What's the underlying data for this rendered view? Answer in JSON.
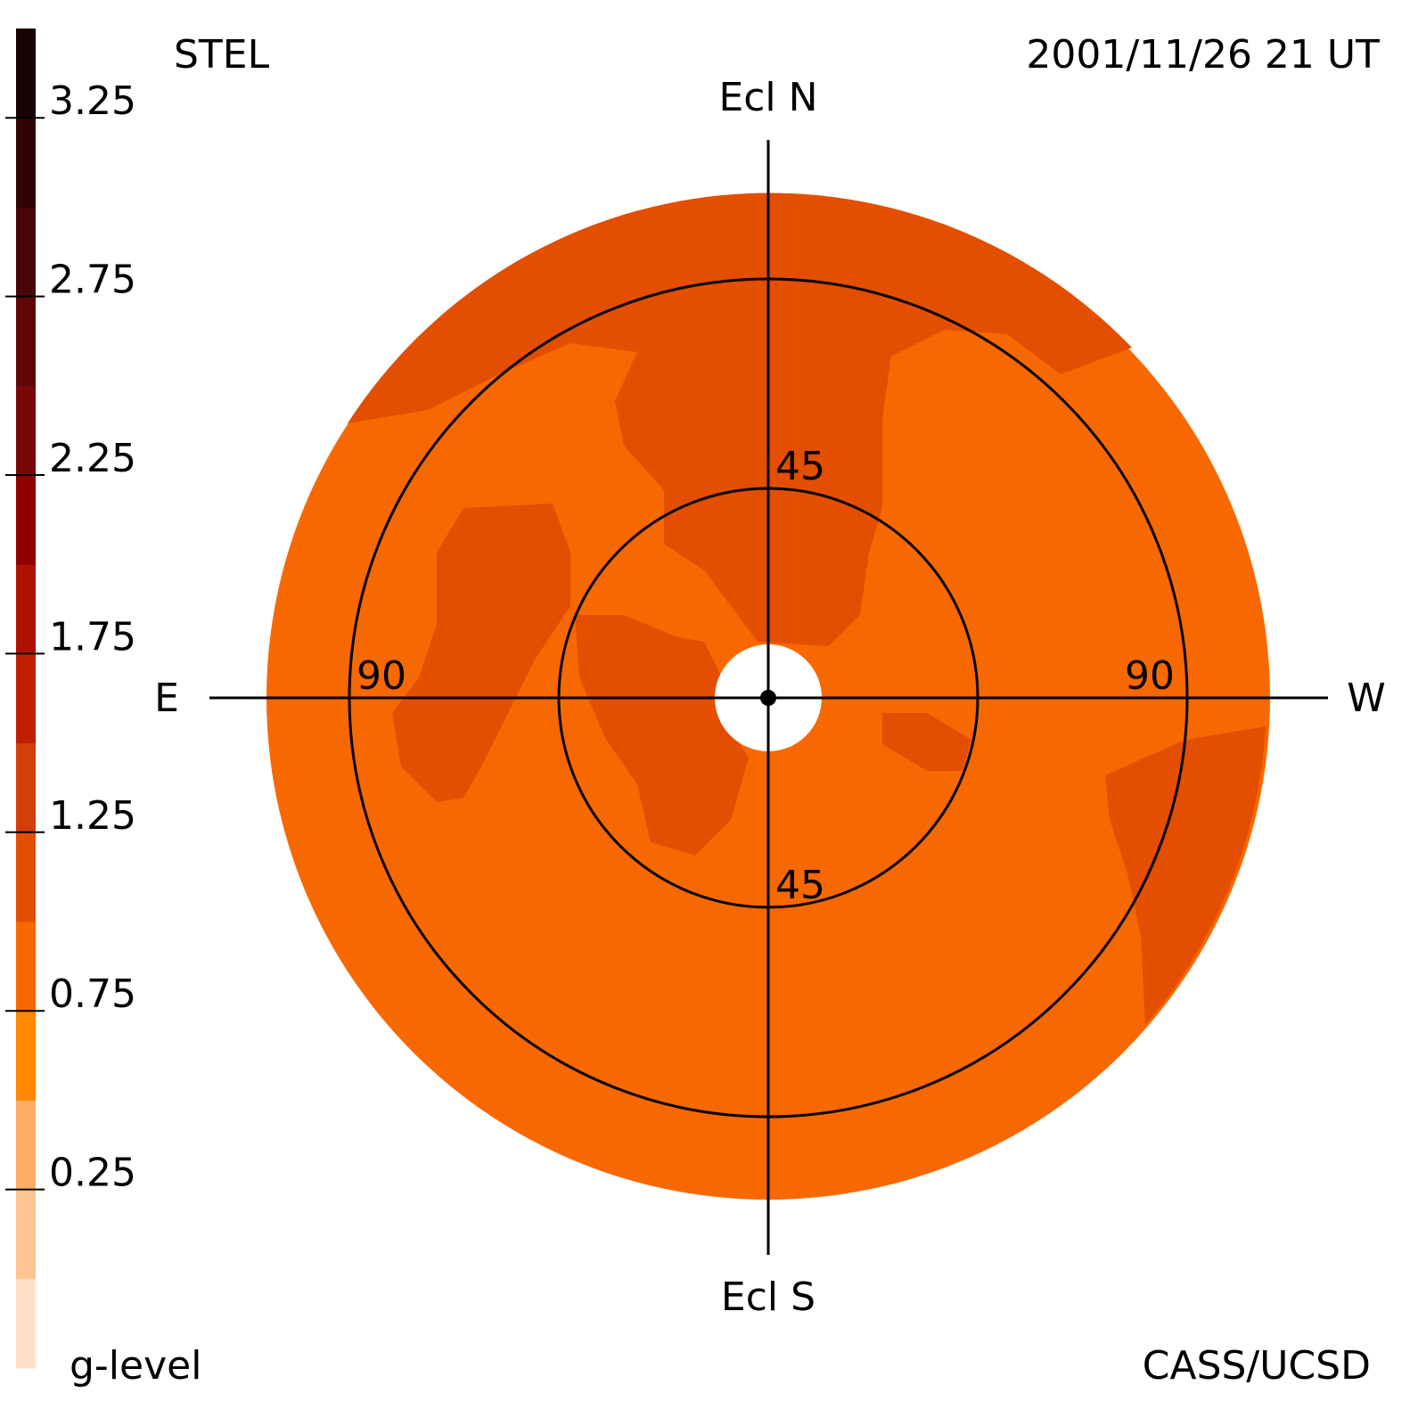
{
  "chart_data": {
    "type": "sky-map",
    "title": "STEL",
    "subtitle": "2001/11/26 21 UT",
    "credit": "CASS/UCSD",
    "north_label": "Ecl N",
    "south_label": "Ecl S",
    "east_label": "E",
    "west_label": "W",
    "rings": [
      45,
      90
    ],
    "colorbar": {
      "label": "g-level",
      "lim": [
        -0.25,
        3.5
      ],
      "ticks": [
        0.25,
        0.75,
        1.25,
        1.75,
        2.25,
        2.75,
        3.25
      ],
      "colors": [
        "#ffe0c8",
        "#ffc490",
        "#ffad66",
        "#ff8800",
        "#f86800",
        "#e34e00",
        "#d43e08",
        "#c02000",
        "#b01000",
        "#900000",
        "#780808",
        "#600808",
        "#480606",
        "#300404",
        "#180202"
      ]
    }
  }
}
